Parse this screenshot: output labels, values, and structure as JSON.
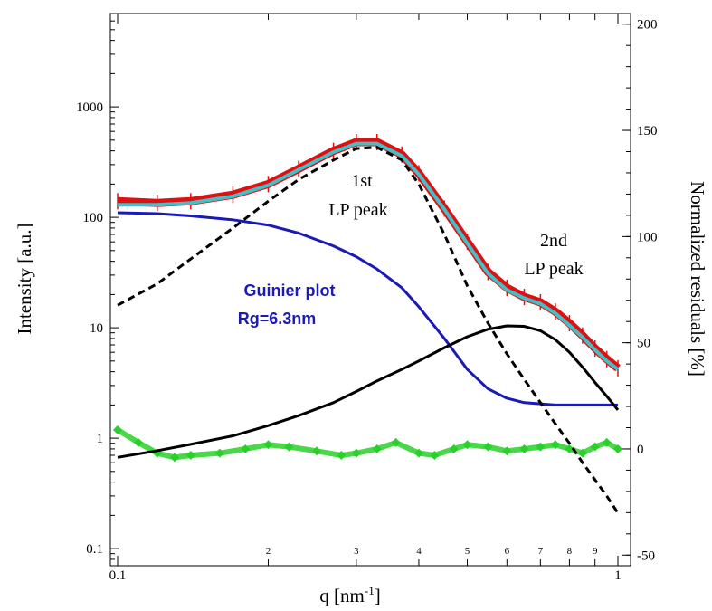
{
  "chart_data": {
    "type": "line",
    "title": "",
    "xlabel": "q [nm",
    "xlabel_sup": "-1",
    "xlabel_end": "]",
    "ylabel": "Intensity [a.u.]",
    "y2label": "Normalized residuals [%]",
    "x_scale": "log",
    "y_scale": "log",
    "xlim": [
      0.1,
      1.0
    ],
    "ylim": [
      0.07,
      7000
    ],
    "y2lim": [
      -55,
      205
    ],
    "grid": false,
    "x_major_ticks": [
      {
        "v": 0.1,
        "label": "0.1"
      },
      {
        "v": 1.0,
        "label": "1"
      }
    ],
    "x_minor_ticks": [
      {
        "v": 0.2,
        "label": "2"
      },
      {
        "v": 0.3,
        "label": "3"
      },
      {
        "v": 0.4,
        "label": "4"
      },
      {
        "v": 0.5,
        "label": "5"
      },
      {
        "v": 0.6,
        "label": "6"
      },
      {
        "v": 0.7,
        "label": "7"
      },
      {
        "v": 0.8,
        "label": "8"
      },
      {
        "v": 0.9,
        "label": "9"
      }
    ],
    "y_ticks": [
      {
        "v": 0.1,
        "label": "0.1"
      },
      {
        "v": 1,
        "label": "1"
      },
      {
        "v": 10,
        "label": "10"
      },
      {
        "v": 100,
        "label": "100"
      },
      {
        "v": 1000,
        "label": "1000"
      }
    ],
    "y2_ticks": [
      {
        "v": -50,
        "label": "-50"
      },
      {
        "v": 0,
        "label": "0"
      },
      {
        "v": 50,
        "label": "50"
      },
      {
        "v": 100,
        "label": "100"
      },
      {
        "v": 150,
        "label": "150"
      },
      {
        "v": 200,
        "label": "200"
      }
    ],
    "series": [
      {
        "key": "data",
        "axis": "left",
        "color": "#e01010",
        "style": "error-markers",
        "x": [
          0.1,
          0.12,
          0.14,
          0.17,
          0.2,
          0.23,
          0.27,
          0.3,
          0.33,
          0.37,
          0.4,
          0.45,
          0.5,
          0.55,
          0.6,
          0.65,
          0.7,
          0.75,
          0.8,
          0.85,
          0.9,
          0.95,
          1.0
        ],
        "y": [
          140,
          135,
          140,
          160,
          200,
          275,
          400,
          480,
          480,
          370,
          250,
          120,
          60,
          32,
          23,
          19,
          17,
          14,
          11,
          8.5,
          6.5,
          5.2,
          4.3
        ]
      },
      {
        "key": "fit",
        "axis": "left",
        "color": "#40c0c8",
        "style": "solid",
        "x": [
          0.1,
          0.12,
          0.14,
          0.17,
          0.2,
          0.23,
          0.27,
          0.3,
          0.33,
          0.37,
          0.4,
          0.45,
          0.5,
          0.55,
          0.6,
          0.65,
          0.7,
          0.75,
          0.8,
          0.85,
          0.9,
          0.95,
          1.0
        ],
        "y": [
          130,
          130,
          135,
          155,
          195,
          270,
          390,
          465,
          465,
          360,
          245,
          118,
          58,
          31,
          22,
          18.5,
          16.5,
          13.5,
          10.5,
          8.2,
          6.3,
          5.0,
          4.2
        ]
      },
      {
        "key": "guinier",
        "axis": "left",
        "color": "#1a1ab8",
        "style": "solid",
        "x": [
          0.1,
          0.12,
          0.14,
          0.17,
          0.2,
          0.23,
          0.27,
          0.3,
          0.33,
          0.37,
          0.4,
          0.45,
          0.5,
          0.55,
          0.6,
          0.65,
          0.7,
          0.75,
          0.8,
          0.9,
          1.0
        ],
        "y": [
          110,
          108,
          103,
          95,
          85,
          72,
          55,
          44,
          34,
          23,
          15.5,
          8,
          4.2,
          2.8,
          2.3,
          2.1,
          2.05,
          2.0,
          2.0,
          2.0,
          2.0
        ]
      },
      {
        "key": "lp1",
        "axis": "left",
        "color": "#000000",
        "style": "dashed",
        "x": [
          0.1,
          0.12,
          0.14,
          0.17,
          0.2,
          0.23,
          0.27,
          0.3,
          0.33,
          0.37,
          0.4,
          0.45,
          0.5,
          0.55,
          0.6,
          0.65,
          0.7,
          0.75,
          0.8,
          0.85,
          0.9,
          0.95,
          1.0
        ],
        "y": [
          16,
          25,
          42,
          80,
          140,
          220,
          330,
          420,
          430,
          330,
          200,
          70,
          24,
          11,
          5.8,
          3.4,
          2.1,
          1.35,
          0.9,
          0.6,
          0.42,
          0.3,
          0.21
        ]
      },
      {
        "key": "lp2",
        "axis": "left",
        "color": "#000000",
        "style": "solid",
        "x": [
          0.1,
          0.12,
          0.14,
          0.17,
          0.2,
          0.23,
          0.27,
          0.3,
          0.33,
          0.37,
          0.4,
          0.45,
          0.5,
          0.55,
          0.6,
          0.65,
          0.7,
          0.75,
          0.8,
          0.85,
          0.9,
          0.95,
          1.0
        ],
        "y": [
          0.67,
          0.77,
          0.88,
          1.05,
          1.3,
          1.6,
          2.1,
          2.65,
          3.3,
          4.2,
          5.0,
          6.6,
          8.3,
          9.7,
          10.4,
          10.3,
          9.4,
          7.8,
          6.0,
          4.4,
          3.2,
          2.4,
          1.8
        ]
      },
      {
        "key": "residuals",
        "axis": "right",
        "color": "#2ad02a",
        "style": "markers",
        "x": [
          0.1,
          0.11,
          0.12,
          0.13,
          0.14,
          0.16,
          0.18,
          0.2,
          0.22,
          0.25,
          0.28,
          0.3,
          0.33,
          0.36,
          0.4,
          0.43,
          0.47,
          0.5,
          0.55,
          0.6,
          0.65,
          0.7,
          0.75,
          0.8,
          0.85,
          0.9,
          0.95,
          1.0
        ],
        "y": [
          9,
          3,
          -2,
          -4,
          -3,
          -2,
          0,
          2,
          1,
          -1,
          -3,
          -2,
          0,
          3,
          -2,
          -3,
          0,
          2,
          1,
          -1,
          0,
          1,
          2,
          0,
          -2,
          1,
          3,
          0
        ]
      }
    ],
    "annotations": [
      {
        "key": "lp1_line1",
        "text": "1st"
      },
      {
        "key": "lp1_line2",
        "text": "LP peak"
      },
      {
        "key": "lp2_line1",
        "text": "2nd"
      },
      {
        "key": "lp2_line2",
        "text": "LP peak"
      },
      {
        "key": "guinier_line1",
        "text": "Guinier plot"
      },
      {
        "key": "guinier_line2",
        "text": "Rg=6.3nm"
      }
    ]
  }
}
